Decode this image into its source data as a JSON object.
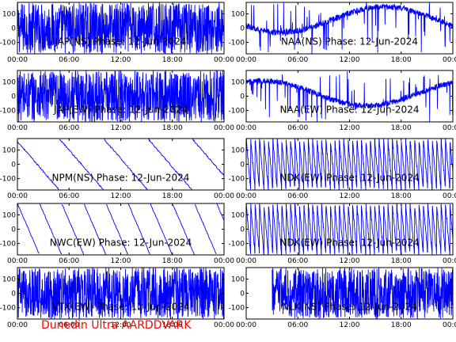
{
  "footer_text": "Dunedin Ultra AARDDVARK",
  "colors": {
    "trace": "#0000ff",
    "axes": "#000000",
    "footer": "#ff0000",
    "background": "#ffffff"
  },
  "chart_data": [
    {
      "type": "line",
      "title": "JAP(NS) Phase: 12-Jun-2024",
      "xticks": [
        "00:00",
        "06:00",
        "12:00",
        "18:00",
        "00:00"
      ],
      "yticks": [
        "100",
        "0",
        "-100"
      ],
      "ylim": [
        -180,
        180
      ],
      "xlim": [
        0,
        24
      ],
      "pattern": "noise",
      "density": 0.97
    },
    {
      "type": "line",
      "title": "NAA(NS) Phase: 12-Jun-2024",
      "xticks": [
        "00:00",
        "06:00",
        "12:00",
        "18:00",
        "00:00"
      ],
      "yticks": [
        "100",
        "0",
        "-100"
      ],
      "ylim": [
        -180,
        180
      ],
      "xlim": [
        0,
        24
      ],
      "pattern": "curve-high",
      "density": 0.3
    },
    {
      "type": "line",
      "title": "JAP(EW) Phase: 12-Jun-2024",
      "xticks": [
        "00:00",
        "06:00",
        "12:00",
        "18:00",
        "00:00"
      ],
      "yticks": [
        "100",
        "0",
        "-100"
      ],
      "ylim": [
        -180,
        180
      ],
      "xlim": [
        0,
        24
      ],
      "pattern": "noise",
      "density": 0.93
    },
    {
      "type": "line",
      "title": "NAA(EW) Phase: 12-Jun-2024",
      "xticks": [
        "00:00",
        "06:00",
        "12:00",
        "18:00",
        "00:00"
      ],
      "yticks": [
        "100",
        "0",
        "-100"
      ],
      "ylim": [
        -180,
        180
      ],
      "xlim": [
        0,
        24
      ],
      "pattern": "curve-low",
      "density": 0.3
    },
    {
      "type": "line",
      "title": "NPM(NS) Phase: 12-Jun-2024",
      "xticks": [
        "00:00",
        "06:00",
        "12:00",
        "18:00",
        "00:00"
      ],
      "yticks": [
        "100",
        "0",
        "-100"
      ],
      "ylim": [
        -180,
        180
      ],
      "xlim": [
        0,
        24
      ],
      "pattern": "sawtooth-sparse",
      "density": 0.1
    },
    {
      "type": "line",
      "title": "NDK(EW) Phase: 12-Jun-2024",
      "xticks": [
        "00:00",
        "06:00",
        "12:00",
        "18:00",
        "00:00"
      ],
      "yticks": [
        "100",
        "0",
        "-100"
      ],
      "ylim": [
        -180,
        180
      ],
      "xlim": [
        0,
        24
      ],
      "pattern": "dense-wraps",
      "density": 0.6
    },
    {
      "type": "line",
      "title": "NWC(EW) Phase: 12-Jun-2024",
      "xticks": [
        "00:00",
        "06:00",
        "12:00",
        "18:00",
        "00:00"
      ],
      "yticks": [
        "100",
        "0",
        "-100"
      ],
      "ylim": [
        -180,
        180
      ],
      "xlim": [
        0,
        24
      ],
      "pattern": "sawtooth",
      "density": 0.1
    },
    {
      "type": "line",
      "title": "NDK(EW) Phase: 12-Jun-2024",
      "xticks": [
        "00:00",
        "06:00",
        "12:00",
        "18:00",
        "00:00"
      ],
      "yticks": [
        "100",
        "0",
        "-100"
      ],
      "ylim": [
        -180,
        180
      ],
      "xlim": [
        0,
        24
      ],
      "pattern": "dense-wraps",
      "density": 0.6
    },
    {
      "type": "line",
      "title": "VTX(EW) Phase: 12-Jun-2024",
      "xticks": [
        "00:00",
        "06:00",
        "12:00",
        "18:00",
        "00:00"
      ],
      "yticks": [
        "100",
        "0",
        "-100"
      ],
      "ylim": [
        -180,
        180
      ],
      "xlim": [
        0,
        24
      ],
      "pattern": "noise",
      "density": 0.55
    },
    {
      "type": "line",
      "title": "NLK(NS) Phase: 12-Jun-2024",
      "xticks": [
        "00:00",
        "06:00",
        "12:00",
        "18:00",
        "00:00"
      ],
      "yticks": [
        "100",
        "0",
        "-100"
      ],
      "ylim": [
        -180,
        180
      ],
      "xlim": [
        0,
        24
      ],
      "pattern": "noise-late",
      "density": 0.6
    }
  ]
}
